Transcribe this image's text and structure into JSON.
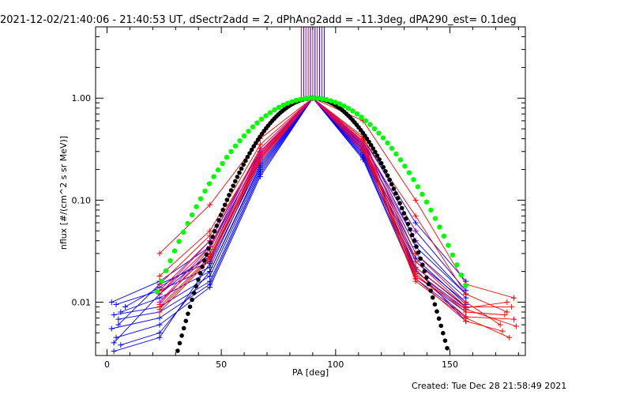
{
  "title": "2021-12-02/21:40:06 - 21:40:53 UT, dSectr2add = 2, dPhAng2add = -11.3deg, dPA290_est=  0.1deg",
  "footer": "Created: Tue Dec 28 21:58:49 2021",
  "chart_data": {
    "type": "line",
    "title": "2021-12-02/21:40:06 - 21:40:53 UT, dSectr2add = 2, dPhAng2add = -11.3deg, dPA290_est=  0.1deg",
    "xlabel": "PA [deg]",
    "ylabel": "nflux [#/(cm^2 s sr MeV)]",
    "xlim": [
      -5,
      183
    ],
    "ylim": [
      0.003,
      5.0
    ],
    "yscale": "log",
    "grid": false,
    "legend": "none",
    "x_ticks": [
      0,
      50,
      100,
      150
    ],
    "x_tick_labels": [
      "0",
      "50",
      "100",
      "150"
    ],
    "y_ticks": [
      0.01,
      0.1,
      1.0
    ],
    "y_tick_labels": [
      "0.01",
      "0.10",
      "1.00"
    ],
    "colors": {
      "red": "#ff0000",
      "blue": "#0000ff",
      "purple": "#c000c0",
      "green": "#00ff00",
      "black": "#000000"
    },
    "red_series": [
      {
        "x": [
          23,
          45,
          67,
          90,
          112,
          135,
          157,
          178
        ],
        "y": [
          0.03,
          0.09,
          0.4,
          1.0,
          0.6,
          0.1,
          0.015,
          0.011
        ]
      },
      {
        "x": [
          23,
          45,
          67,
          90,
          112,
          135,
          157,
          175
        ],
        "y": [
          0.018,
          0.05,
          0.35,
          1.0,
          0.4,
          0.07,
          0.012,
          0.008
        ]
      },
      {
        "x": [
          23,
          45,
          67,
          90,
          112,
          135,
          157,
          172
        ],
        "y": [
          0.015,
          0.045,
          0.3,
          1.0,
          0.38,
          0.03,
          0.01,
          0.006
        ]
      },
      {
        "x": [
          23,
          45,
          67,
          90,
          112,
          135,
          157,
          177
        ],
        "y": [
          0.013,
          0.04,
          0.32,
          1.0,
          0.42,
          0.025,
          0.009,
          0.009
        ]
      },
      {
        "x": [
          23,
          45,
          67,
          90,
          112,
          135,
          157,
          174
        ],
        "y": [
          0.012,
          0.035,
          0.28,
          1.0,
          0.36,
          0.02,
          0.008,
          0.0075
        ]
      },
      {
        "x": [
          23,
          45,
          67,
          90,
          112,
          135,
          157,
          179
        ],
        "y": [
          0.01,
          0.03,
          0.27,
          1.0,
          0.35,
          0.018,
          0.0085,
          0.0058
        ]
      },
      {
        "x": [
          23,
          45,
          67,
          90,
          112,
          135,
          157,
          176
        ],
        "y": [
          0.009,
          0.028,
          0.26,
          1.0,
          0.33,
          0.016,
          0.007,
          0.0045
        ]
      },
      {
        "x": [
          23,
          45,
          67,
          90,
          112,
          135,
          157,
          173
        ],
        "y": [
          0.0085,
          0.027,
          0.25,
          1.0,
          0.32,
          0.017,
          0.0065,
          0.0052
        ]
      },
      {
        "x": [
          23,
          45,
          67,
          90,
          112,
          135,
          157,
          178
        ],
        "y": [
          0.008,
          0.026,
          0.24,
          1.0,
          0.3,
          0.019,
          0.0072,
          0.0068
        ]
      },
      {
        "x": [
          23,
          45,
          67,
          90,
          112,
          135,
          157,
          175
        ],
        "y": [
          0.0095,
          0.033,
          0.29,
          1.0,
          0.37,
          0.022,
          0.0088,
          0.01
        ]
      }
    ],
    "blue_series": [
      {
        "x": [
          3,
          23,
          45,
          67,
          90,
          112,
          135,
          157
        ],
        "y": [
          0.004,
          0.012,
          0.03,
          0.3,
          1.0,
          0.4,
          0.06,
          0.016
        ]
      },
      {
        "x": [
          5,
          23,
          45,
          67,
          90,
          112,
          135,
          157
        ],
        "y": [
          0.006,
          0.015,
          0.025,
          0.28,
          1.0,
          0.35,
          0.05,
          0.013
        ]
      },
      {
        "x": [
          2,
          23,
          45,
          67,
          90,
          112,
          135,
          157
        ],
        "y": [
          0.01,
          0.016,
          0.035,
          0.32,
          1.0,
          0.38,
          0.04,
          0.012
        ]
      },
      {
        "x": [
          4,
          23,
          45,
          67,
          90,
          112,
          135,
          157
        ],
        "y": [
          0.0095,
          0.013,
          0.022,
          0.25,
          1.0,
          0.32,
          0.03,
          0.011
        ]
      },
      {
        "x": [
          6,
          23,
          45,
          67,
          90,
          112,
          135,
          157
        ],
        "y": [
          0.008,
          0.011,
          0.02,
          0.22,
          1.0,
          0.3,
          0.025,
          0.01
        ]
      },
      {
        "x": [
          3,
          23,
          45,
          67,
          90,
          112,
          135,
          157
        ],
        "y": [
          0.0075,
          0.009,
          0.018,
          0.2,
          1.0,
          0.28,
          0.022,
          0.009
        ]
      },
      {
        "x": [
          5,
          23,
          45,
          67,
          90,
          112,
          135,
          157
        ],
        "y": [
          0.0068,
          0.008,
          0.016,
          0.19,
          1.0,
          0.27,
          0.02,
          0.0085
        ]
      },
      {
        "x": [
          2,
          23,
          45,
          67,
          90,
          112,
          135,
          157
        ],
        "y": [
          0.0055,
          0.007,
          0.015,
          0.18,
          1.0,
          0.26,
          0.018,
          0.008
        ]
      },
      {
        "x": [
          4,
          23,
          45,
          67,
          90,
          112,
          135,
          157
        ],
        "y": [
          0.0045,
          0.006,
          0.014,
          0.17,
          1.0,
          0.25,
          0.017,
          0.0072
        ]
      },
      {
        "x": [
          6,
          23,
          45,
          67,
          90,
          112,
          135,
          157
        ],
        "y": [
          0.0038,
          0.005,
          0.02,
          0.21,
          1.0,
          0.29,
          0.021,
          0.0065
        ]
      },
      {
        "x": [
          3,
          23,
          45,
          67,
          90,
          112,
          135,
          157
        ],
        "y": [
          0.0033,
          0.0045,
          0.024,
          0.23,
          1.0,
          0.31,
          0.027,
          0.0095
        ]
      },
      {
        "x": [
          8,
          23,
          45,
          67,
          90,
          112,
          135,
          157
        ],
        "y": [
          0.009,
          0.014,
          0.028,
          0.26,
          1.0,
          0.34,
          0.035,
          0.012
        ]
      }
    ],
    "purple_series": [
      {
        "x": [
          23,
          45,
          67,
          90,
          112,
          135
        ],
        "y": [
          0.012,
          0.04,
          0.3,
          1.0,
          0.36,
          0.05
        ]
      },
      {
        "x": [
          23,
          45,
          67,
          90,
          112,
          135
        ],
        "y": [
          0.01,
          0.035,
          0.27,
          1.0,
          0.33,
          0.04
        ]
      }
    ],
    "green_curve": {
      "x_min": 22,
      "x_max": 158,
      "peak_x": 90,
      "sigma": 23,
      "note_points": 70
    },
    "black_curve": {
      "x_min": 30,
      "x_max": 150,
      "peak_x": 90,
      "sigma": 17.5
    },
    "spike_lines": {
      "x": [
        85,
        86,
        87,
        88,
        89,
        90,
        91,
        92,
        93,
        94,
        95
      ],
      "colors": [
        "#ff0000",
        "#0000ff",
        "#c000c0",
        "#ff0000",
        "#0000ff",
        "#ff0000",
        "#0000ff",
        "#c000c0",
        "#0000ff",
        "#ff0000",
        "#0000ff"
      ],
      "y_low": 1.0,
      "y_high": 5.0
    }
  }
}
